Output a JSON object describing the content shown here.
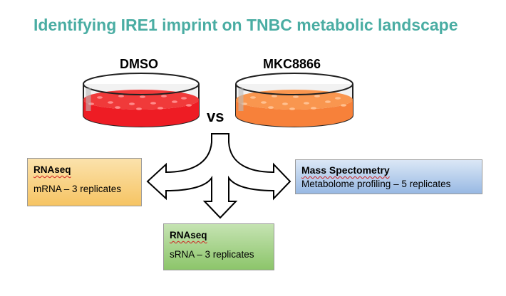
{
  "title": "Identifying IRE1 imprint on TNBC metabolic landscape",
  "dishes": {
    "left_label": "DMSO",
    "right_label": "MKC8866",
    "left_color": "#ee1c24",
    "right_color": "#f7813a"
  },
  "vs_label": "vs",
  "boxes": {
    "left": {
      "heading": "RNAseq",
      "text": "mRNA – 3 replicates",
      "color": "#f6c463"
    },
    "right": {
      "heading": "Mass Spectometry",
      "text": "Metabolome profiling – 5 replicates",
      "color": "#98b9e3"
    },
    "bottom": {
      "heading": "RNAseq",
      "text": "sRNA – 3 replicates",
      "color": "#8cc56a"
    }
  }
}
